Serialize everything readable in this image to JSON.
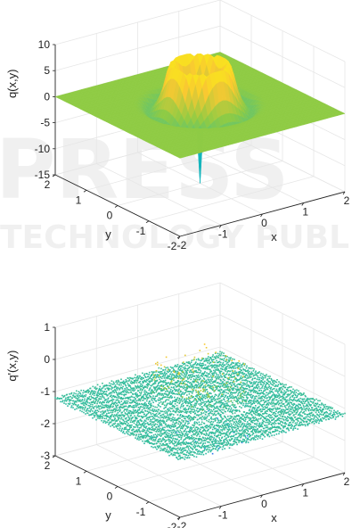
{
  "chart_data": [
    {
      "type": "surface",
      "zlabel": "q(x,y)",
      "xlabel": "x",
      "ylabel": "y",
      "xlim": [
        -2,
        2
      ],
      "ylim": [
        -2,
        2
      ],
      "zlim": [
        -15,
        10
      ],
      "x_ticks": [
        "-2",
        "-1",
        "0",
        "1",
        "2"
      ],
      "y_ticks": [
        "-2",
        "-1",
        "0",
        "1",
        "2"
      ],
      "z_ticks": [
        "10",
        "5",
        "0",
        "-5",
        "-10",
        "-15"
      ],
      "grid": true,
      "colormap": [
        "#3d26a8",
        "#2e87f7",
        "#14b7b9",
        "#8fcb44",
        "#f9c931",
        "#f9fb0e"
      ],
      "surface": {
        "baseline": 0,
        "ring_radius": 0.55,
        "ring_peak": 8,
        "outer_dip": -1.5,
        "center_min": -15
      }
    },
    {
      "type": "scatter3d",
      "zlabel": "q'(x,y)",
      "xlabel": "x",
      "ylabel": "y",
      "xlim": [
        -2,
        2
      ],
      "ylim": [
        -2,
        2
      ],
      "zlim": [
        -3,
        1
      ],
      "x_ticks": [
        "-2",
        "-1",
        "0",
        "1",
        "2"
      ],
      "y_ticks": [
        "-2",
        "-1",
        "0",
        "1",
        "2"
      ],
      "z_ticks": [
        "1",
        "0",
        "-1",
        "-2",
        "-3"
      ],
      "grid": true,
      "colormap": [
        "#3d26a8",
        "#2e87f7",
        "#14b7b9",
        "#8fcb44",
        "#f9c931",
        "#f9fb0e"
      ],
      "points": {
        "baseline": -1.2,
        "noise": 0.06,
        "square_half_width": 0.65,
        "wall_top": 0.2,
        "spike_bottom": -2.4
      }
    }
  ],
  "watermark": {
    "line1": "PRESS",
    "line2": "TECHNOLOGY PUBLICATIONS"
  }
}
